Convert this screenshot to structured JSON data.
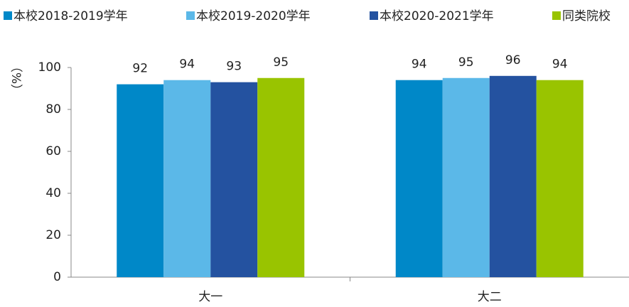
{
  "chart_data": {
    "type": "bar",
    "y_label": "（%）",
    "categories": [
      "大一",
      "大二"
    ],
    "series": [
      {
        "name": "本校2018-2019学年",
        "color": "#0088c8",
        "values": [
          92,
          94
        ]
      },
      {
        "name": "本校2019-2020学年",
        "color": "#5bb8e8",
        "values": [
          94,
          95
        ]
      },
      {
        "name": "本校2020-2021学年",
        "color": "#2452a0",
        "values": [
          93,
          96
        ]
      },
      {
        "name": "同类院校",
        "color": "#99c400",
        "values": [
          95,
          94
        ]
      }
    ],
    "ylim": [
      0,
      100
    ],
    "yticks": [
      0,
      20,
      40,
      60,
      80,
      100
    ],
    "grid": false,
    "legend": "top"
  }
}
